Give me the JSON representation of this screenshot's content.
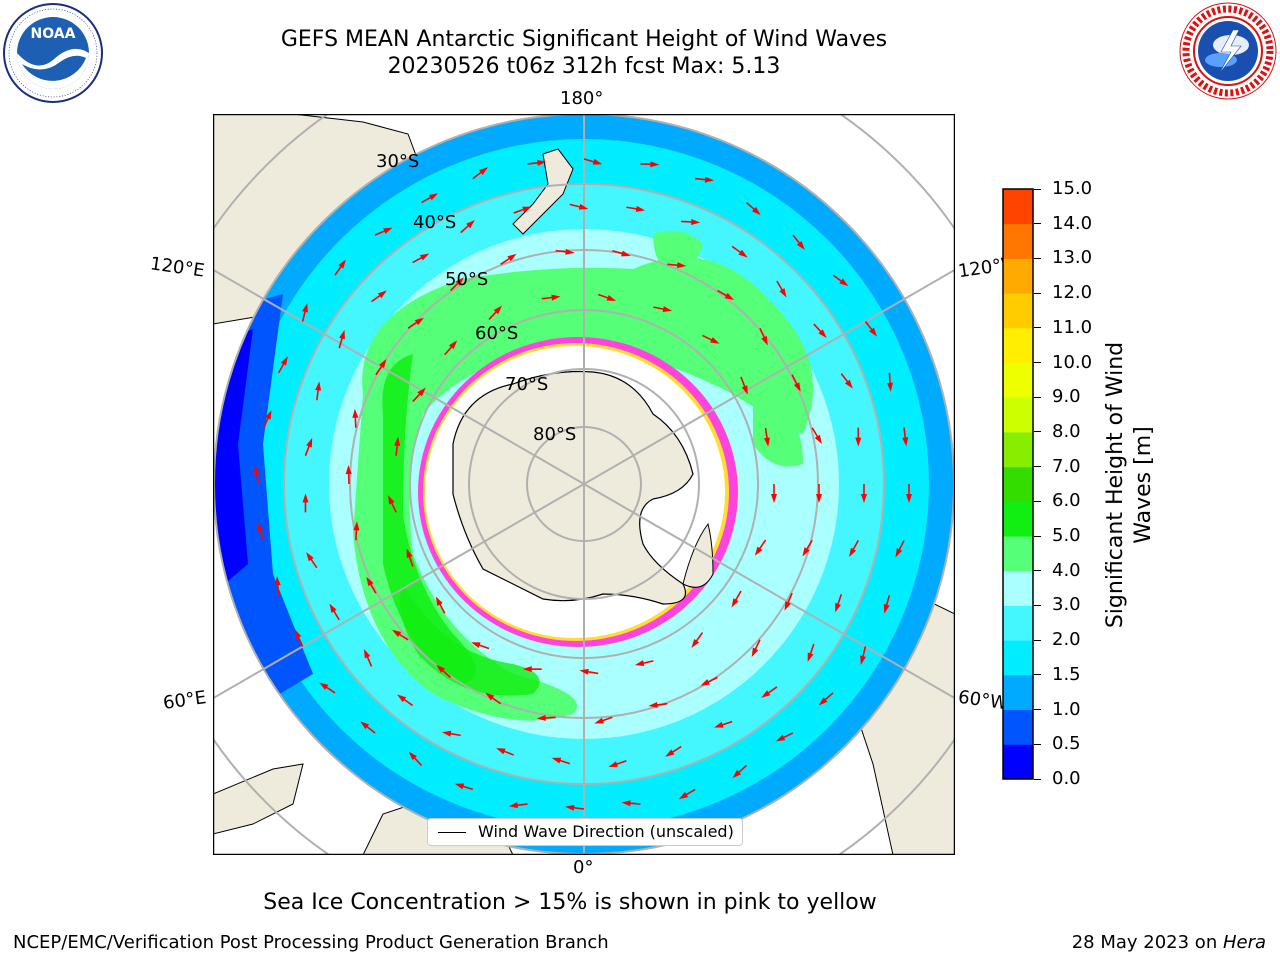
{
  "title": {
    "line1": "GEFS MEAN Antarctic Significant Height of Wind Waves",
    "line2": "20230526 t06z 312h fcst    Max: 5.13"
  },
  "logos": {
    "left": "NOAA",
    "left_ring_text": "NATIONAL OCEANIC AND ATMOSPHERIC ADMINISTRATION · U.S. DEPARTMENT OF COMMERCE",
    "right_ring_text": "NATIONAL WEATHER SERVICE"
  },
  "map": {
    "longitude_labels": [
      "180°",
      "120°E",
      "120°W",
      "60°E",
      "60°W",
      "0°"
    ],
    "latitude_labels": [
      "30°S",
      "40°S",
      "50°S",
      "60°S",
      "70°S",
      "80°S"
    ],
    "legend_text": "Wind Wave Direction (unscaled)",
    "colors": {
      "land": "#efebdc",
      "ice": "#ffffff",
      "ice_edge": "#ff44dd",
      "arrow": "#ff0000"
    }
  },
  "colorbar": {
    "label": "Significant Height of Wind Waves [m]",
    "label_line1": "Significant Height of Wind",
    "label_line2": "Waves [m]",
    "ticks": [
      "0.0",
      "0.5",
      "1.0",
      "1.5",
      "2.0",
      "3.0",
      "4.0",
      "5.0",
      "6.0",
      "7.0",
      "8.0",
      "9.0",
      "10.0",
      "11.0",
      "12.0",
      "13.0",
      "14.0",
      "15.0"
    ],
    "colors": [
      "#0000ff",
      "#0055ff",
      "#00aaff",
      "#00eeff",
      "#44f7ff",
      "#aaffff",
      "#55ff77",
      "#11ee11",
      "#33dd00",
      "#88ee00",
      "#ccff00",
      "#eeff00",
      "#ffee00",
      "#ffcc00",
      "#ffaa00",
      "#ff7700",
      "#ff4400",
      "#ff0000"
    ]
  },
  "caption": "Sea Ice Concentration > 15% is shown in pink to yellow",
  "footer": {
    "left": "NCEP/EMC/Verification Post Processing Product Generation Branch",
    "right_prefix": "28 May 2023 on ",
    "right_host": "Hera"
  }
}
